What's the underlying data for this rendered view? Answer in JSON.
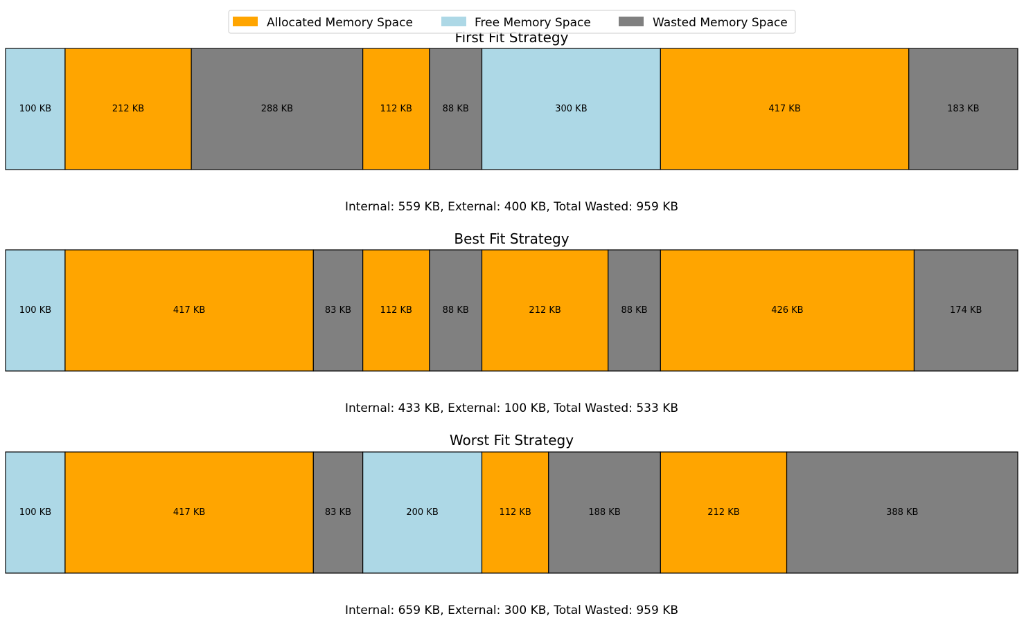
{
  "chart_data": {
    "type": "bar",
    "orientation": "horizontal-stacked",
    "unit": "KB",
    "legend": {
      "placement": "top-center",
      "entries": [
        {
          "key": "allocated",
          "label": "Allocated Memory Space",
          "color": "#ffa500"
        },
        {
          "key": "free",
          "label": "Free Memory Space",
          "color": "#add8e6"
        },
        {
          "key": "wasted",
          "label": "Wasted Memory Space",
          "color": "#808080"
        }
      ]
    },
    "panels": [
      {
        "title": "First Fit Strategy",
        "segments": [
          {
            "type": "free",
            "value": 100,
            "label": "100 KB"
          },
          {
            "type": "allocated",
            "value": 212,
            "label": "212 KB"
          },
          {
            "type": "wasted",
            "value": 288,
            "label": "288 KB"
          },
          {
            "type": "allocated",
            "value": 112,
            "label": "112 KB"
          },
          {
            "type": "wasted",
            "value": 88,
            "label": "88 KB"
          },
          {
            "type": "free",
            "value": 300,
            "label": "300 KB"
          },
          {
            "type": "allocated",
            "value": 417,
            "label": "417 KB"
          },
          {
            "type": "wasted",
            "value": 183,
            "label": "183 KB"
          }
        ],
        "summary": "Internal: 559 KB, External: 400 KB, Total Wasted: 959 KB"
      },
      {
        "title": "Best Fit Strategy",
        "segments": [
          {
            "type": "free",
            "value": 100,
            "label": "100 KB"
          },
          {
            "type": "allocated",
            "value": 417,
            "label": "417 KB"
          },
          {
            "type": "wasted",
            "value": 83,
            "label": "83 KB"
          },
          {
            "type": "allocated",
            "value": 112,
            "label": "112 KB"
          },
          {
            "type": "wasted",
            "value": 88,
            "label": "88 KB"
          },
          {
            "type": "allocated",
            "value": 212,
            "label": "212 KB"
          },
          {
            "type": "wasted",
            "value": 88,
            "label": "88 KB"
          },
          {
            "type": "allocated",
            "value": 426,
            "label": "426 KB"
          },
          {
            "type": "wasted",
            "value": 174,
            "label": "174 KB"
          }
        ],
        "summary": "Internal: 433 KB, External: 100 KB, Total Wasted: 533 KB"
      },
      {
        "title": "Worst Fit Strategy",
        "segments": [
          {
            "type": "free",
            "value": 100,
            "label": "100 KB"
          },
          {
            "type": "allocated",
            "value": 417,
            "label": "417 KB"
          },
          {
            "type": "wasted",
            "value": 83,
            "label": "83 KB"
          },
          {
            "type": "free",
            "value": 200,
            "label": "200 KB"
          },
          {
            "type": "allocated",
            "value": 112,
            "label": "112 KB"
          },
          {
            "type": "wasted",
            "value": 188,
            "label": "188 KB"
          },
          {
            "type": "allocated",
            "value": 212,
            "label": "212 KB"
          },
          {
            "type": "wasted",
            "value": 388,
            "label": "388 KB"
          }
        ],
        "summary": "Internal: 659 KB, External: 300 KB, Total Wasted: 959 KB"
      }
    ]
  }
}
